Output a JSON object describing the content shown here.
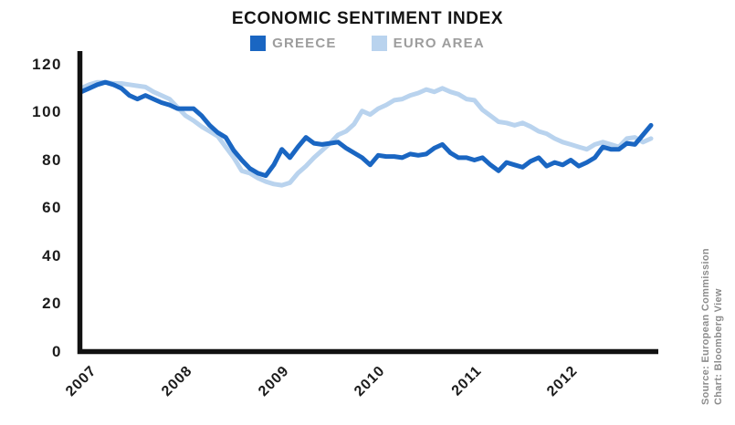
{
  "title": "ECONOMIC SENTIMENT INDEX",
  "legend": [
    {
      "label": "GREECE",
      "color": "#1a66c2"
    },
    {
      "label": "EURO AREA",
      "color": "#b9d3ee"
    }
  ],
  "source_credit": {
    "line1": "Source: European Commission",
    "line2": "Chart: Bloomberg View"
  },
  "colors": {
    "greece_line": "#1a66c2",
    "euro_area_line": "#b9d3ee",
    "axis": "#111111",
    "tick_text": "#1c1c1c",
    "legend_text": "#9d9d9d",
    "credit_text": "#8d8d8d",
    "background": "#ffffff"
  },
  "chart_data": {
    "type": "line",
    "title": "ECONOMIC SENTIMENT INDEX",
    "xlabel": "",
    "ylabel": "",
    "ylim": [
      0,
      120
    ],
    "y_ticks": [
      "120",
      "100",
      "80",
      "60",
      "40",
      "20",
      "0"
    ],
    "y_tick_values": [
      120,
      100,
      80,
      60,
      40,
      20,
      0
    ],
    "x_tick_labels": [
      "2007",
      "2008",
      "2009",
      "2010",
      "2011",
      "2012"
    ],
    "x_frequency": "monthly",
    "x_range": "Jan 2007 - Dec 2012",
    "grid": false,
    "legend_position": "top",
    "series": [
      {
        "name": "GREECE",
        "color": "#1a66c2",
        "values": [
          108.5,
          110,
          111.5,
          112.5,
          111.5,
          110,
          107,
          105.5,
          107,
          105.5,
          104,
          103,
          101.5,
          101.5,
          101.5,
          98.5,
          94.5,
          91.5,
          89.5,
          84,
          80,
          76.5,
          74.5,
          73.5,
          78,
          84.5,
          81,
          85.5,
          89.5,
          87,
          86.5,
          87,
          87.5,
          85,
          83,
          81,
          78,
          82,
          81.5,
          81.5,
          81,
          82.5,
          82,
          82.5,
          85,
          86.5,
          83,
          81,
          81,
          80,
          81,
          78,
          75.5,
          79,
          78,
          77,
          79.5,
          81,
          77.5,
          79,
          78,
          80,
          77.5,
          79,
          81,
          85.5,
          84.5,
          84.5,
          87,
          86.5,
          90.5,
          94.5
        ]
      },
      {
        "name": "EURO AREA",
        "color": "#b9d3ee",
        "values": [
          110,
          111.5,
          112.5,
          112.5,
          112,
          112,
          111.5,
          111,
          110.5,
          108.5,
          107,
          105.5,
          102,
          98.5,
          96.5,
          94,
          92,
          90,
          85.5,
          81,
          75.5,
          74.5,
          72.5,
          71,
          70,
          69.5,
          70.5,
          74.5,
          77.5,
          81,
          84,
          87,
          90.5,
          92,
          95,
          100.5,
          99,
          101.5,
          103,
          105,
          105.5,
          107,
          108,
          109.5,
          108.5,
          110,
          108.5,
          107.5,
          105.5,
          105,
          101,
          98.5,
          96,
          95.5,
          94.5,
          95.5,
          94,
          92,
          91,
          89,
          87.5,
          86.5,
          85.5,
          84.5,
          86.5,
          87.5,
          86.5,
          85.5,
          89,
          89.5,
          87.5,
          89
        ]
      }
    ]
  }
}
